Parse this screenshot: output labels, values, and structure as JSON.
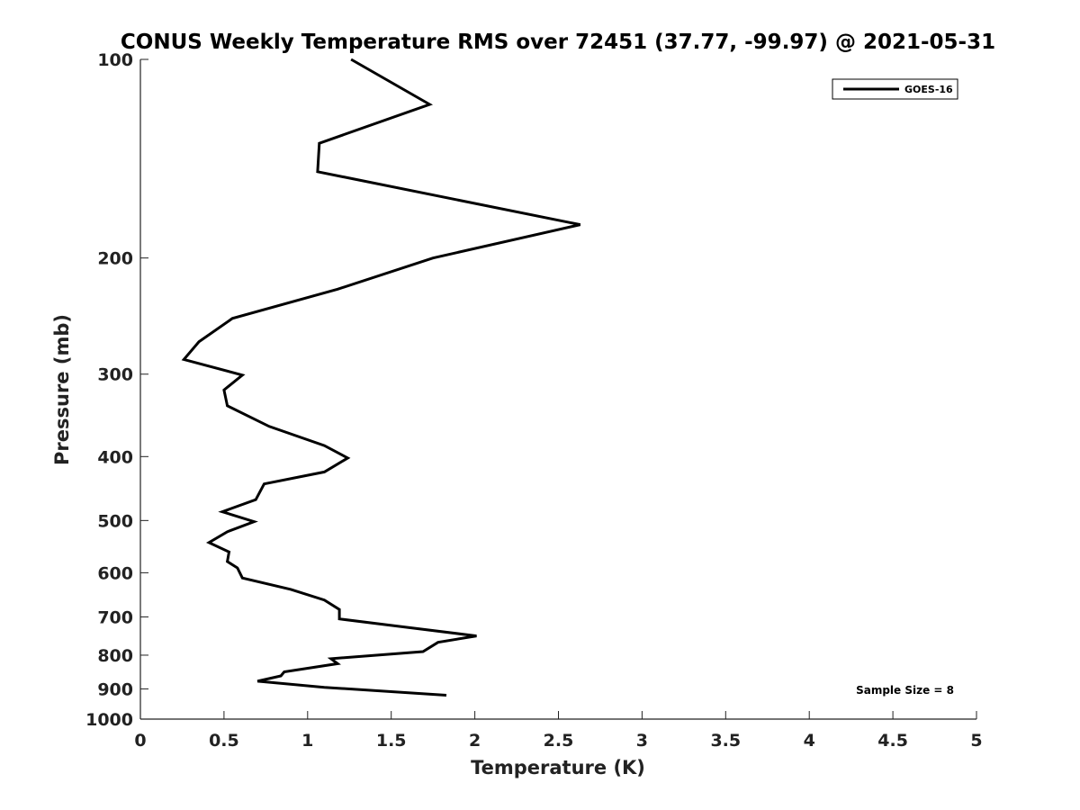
{
  "chart_data": {
    "type": "line",
    "title": "CONUS Weekly Temperature RMS over 72451 (37.77, -99.97) @ 2021-05-31",
    "xlabel": "Temperature (K)",
    "ylabel": "Pressure (mb)",
    "xlim": [
      0,
      5
    ],
    "ylim": [
      100,
      1000
    ],
    "y_scale": "log",
    "y_reversed": true,
    "grid": false,
    "x_ticks": [
      0,
      0.5,
      1,
      1.5,
      2,
      2.5,
      3,
      3.5,
      4,
      4.5,
      5
    ],
    "x_tick_labels": [
      "0",
      "0.5",
      "1",
      "1.5",
      "2",
      "2.5",
      "3",
      "3.5",
      "4",
      "4.5",
      "5"
    ],
    "y_ticks": [
      100,
      200,
      300,
      400,
      500,
      600,
      700,
      800,
      900,
      1000
    ],
    "y_tick_labels": [
      "100",
      "200",
      "300",
      "400",
      "500",
      "600",
      "700",
      "800",
      "900",
      "1000"
    ],
    "legend": {
      "position": "top-right",
      "entries": [
        "GOES-16"
      ]
    },
    "annotation": "Sample Size = 8",
    "series": [
      {
        "name": "GOES-16",
        "color": "#000000",
        "x": [
          1.26,
          1.73,
          1.07,
          1.06,
          2.63,
          1.75,
          1.18,
          0.55,
          0.35,
          0.26,
          0.61,
          0.5,
          0.52,
          0.77,
          1.1,
          1.24,
          1.1,
          0.74,
          0.69,
          0.49,
          0.68,
          0.52,
          0.41,
          0.53,
          0.52,
          0.58,
          0.61,
          0.9,
          1.1,
          1.19,
          1.19,
          1.56,
          2.01,
          1.78,
          1.69,
          1.14,
          1.18,
          0.86,
          0.84,
          0.7,
          1.1,
          1.83
        ],
        "y": [
          100,
          117,
          134,
          148,
          178,
          200,
          223,
          247,
          268,
          285,
          301,
          317,
          335,
          360,
          385,
          402,
          422,
          440,
          465,
          485,
          502,
          520,
          540,
          558,
          577,
          590,
          611,
          636,
          660,
          682,
          705,
          724,
          748,
          765,
          790,
          810,
          824,
          848,
          860,
          876,
          895,
          920
        ]
      }
    ]
  }
}
